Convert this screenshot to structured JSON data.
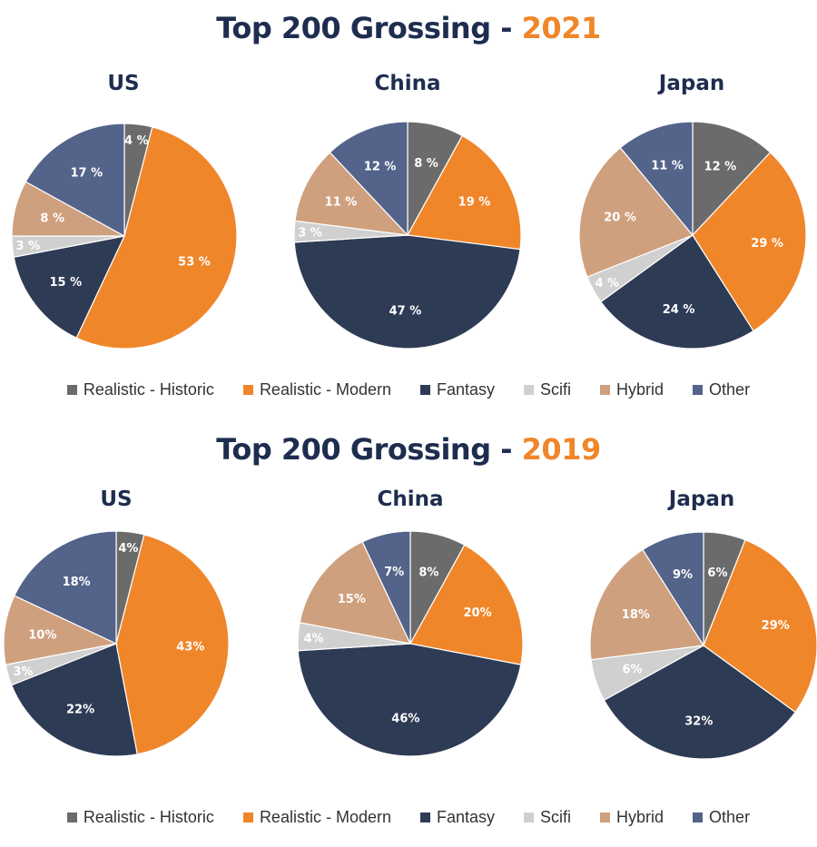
{
  "sections": [
    {
      "title_prefix": "Top 200 Grossing - ",
      "year": "2021",
      "label_suffix": " %"
    },
    {
      "title_prefix": "Top 200 Grossing - ",
      "year": "2019",
      "label_suffix": "%"
    }
  ],
  "legend": [
    {
      "label": "Realistic - Historic",
      "color": "#6b6b6b"
    },
    {
      "label": "Realistic - Modern",
      "color": "#f0862a"
    },
    {
      "label": "Fantasy",
      "color": "#2e3b55"
    },
    {
      "label": "Scifi",
      "color": "#d0d0d0"
    },
    {
      "label": "Hybrid",
      "color": "#cfa07e"
    },
    {
      "label": "Other",
      "color": "#53638a"
    }
  ],
  "chart_data": [
    {
      "type": "pie",
      "title": "US",
      "group": "Top 200 Grossing - 2021",
      "categories": [
        "Realistic - Historic",
        "Realistic - Modern",
        "Fantasy",
        "Scifi",
        "Hybrid",
        "Other"
      ],
      "values": [
        4,
        53,
        15,
        3,
        8,
        17
      ]
    },
    {
      "type": "pie",
      "title": "China",
      "group": "Top 200 Grossing - 2021",
      "categories": [
        "Realistic - Historic",
        "Realistic - Modern",
        "Fantasy",
        "Scifi",
        "Hybrid",
        "Other"
      ],
      "values": [
        8,
        19,
        47,
        3,
        11,
        12
      ]
    },
    {
      "type": "pie",
      "title": "Japan",
      "group": "Top 200 Grossing - 2021",
      "categories": [
        "Realistic - Historic",
        "Realistic - Modern",
        "Fantasy",
        "Scifi",
        "Hybrid",
        "Other"
      ],
      "values": [
        12,
        29,
        24,
        4,
        20,
        11
      ]
    },
    {
      "type": "pie",
      "title": "US",
      "group": "Top 200 Grossing - 2019",
      "categories": [
        "Realistic - Historic",
        "Realistic - Modern",
        "Fantasy",
        "Scifi",
        "Hybrid",
        "Other"
      ],
      "values": [
        4,
        43,
        22,
        3,
        10,
        18
      ]
    },
    {
      "type": "pie",
      "title": "China",
      "group": "Top 200 Grossing - 2019",
      "categories": [
        "Realistic - Historic",
        "Realistic - Modern",
        "Fantasy",
        "Scifi",
        "Hybrid",
        "Other"
      ],
      "values": [
        8,
        20,
        46,
        4,
        15,
        7
      ]
    },
    {
      "type": "pie",
      "title": "Japan",
      "group": "Top 200 Grossing - 2019",
      "categories": [
        "Realistic - Historic",
        "Realistic - Modern",
        "Fantasy",
        "Scifi",
        "Hybrid",
        "Other"
      ],
      "values": [
        6,
        29,
        32,
        6,
        18,
        9
      ]
    }
  ]
}
